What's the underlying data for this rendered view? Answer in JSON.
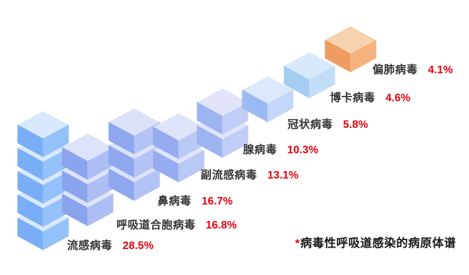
{
  "chart_data": {
    "type": "bar",
    "variant": "isometric-cube-stack",
    "title": "",
    "unit": "%",
    "legend": "none",
    "axes": "none",
    "categories": [
      "流感病毒",
      "呼吸道合胞病毒",
      "鼻病毒",
      "副流感病毒",
      "腺病毒",
      "冠状病毒",
      "博卡病毒",
      "偏肺病毒"
    ],
    "values": [
      28.5,
      16.8,
      16.7,
      13.1,
      10.3,
      5.8,
      4.6,
      4.1
    ],
    "items": [
      {
        "label": "流感病毒",
        "value": 28.5,
        "display": "28.5%",
        "cubes": 5,
        "colors": {
          "top": "#D8E8FD",
          "left": "#79AEF7",
          "right": "#94C1F9"
        }
      },
      {
        "label": "呼吸道合胞病毒",
        "value": 16.8,
        "display": "16.8%",
        "cubes": 3,
        "colors": {
          "top": "#DDE3FA",
          "left": "#8BA4EE",
          "right": "#ACBEF3"
        }
      },
      {
        "label": "鼻病毒",
        "value": 16.7,
        "display": "16.7%",
        "cubes": 3,
        "colors": {
          "top": "#DBE2FA",
          "left": "#8EA7EF",
          "right": "#B4C3F5"
        }
      },
      {
        "label": "副流感病毒",
        "value": 13.1,
        "display": "13.1%",
        "cubes": 2,
        "colors": {
          "top": "#DEE4FB",
          "left": "#97ABF0",
          "right": "#BAC8F5"
        }
      },
      {
        "label": "腺病毒",
        "value": 10.3,
        "display": "10.3%",
        "cubes": 2,
        "colors": {
          "top": "#E0E5FB",
          "left": "#9EB3F1",
          "right": "#C0CDF6"
        }
      },
      {
        "label": "冠状病毒",
        "value": 5.8,
        "display": "5.8%",
        "cubes": 1,
        "colors": {
          "top": "#DCE8FB",
          "left": "#9CBAF2",
          "right": "#C3D8F8"
        }
      },
      {
        "label": "博卡病毒",
        "value": 4.6,
        "display": "4.6%",
        "cubes": 1,
        "colors": {
          "top": "#D7E9FA",
          "left": "#A5CDF2",
          "right": "#C2DEF7"
        }
      },
      {
        "label": "偏肺病毒",
        "value": 4.1,
        "display": "4.1%",
        "cubes": 1,
        "colors": {
          "top": "#F7D2AE",
          "left": "#EF9C60",
          "right": "#F4B27E"
        }
      }
    ],
    "highlight_color": "#EF9C60",
    "value_color": "#E8000D",
    "label_color": "#333333",
    "footnote": {
      "marker": "*",
      "marker_color": "#E8000D",
      "text": "病毒性呼吸道感染的病原体谱"
    }
  }
}
